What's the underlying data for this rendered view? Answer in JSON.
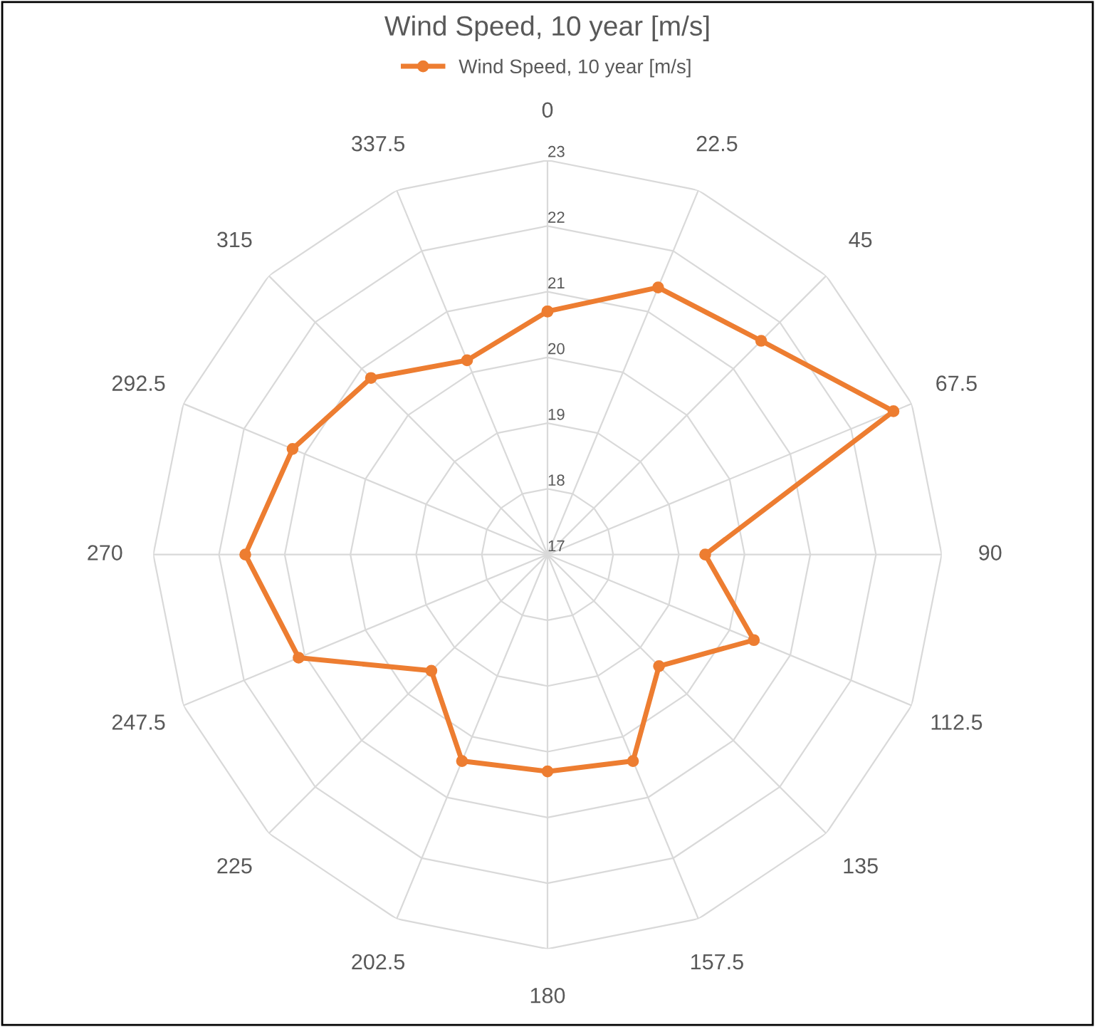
{
  "chart_data": {
    "type": "radar",
    "title": "Wind Speed, 10 year [m/s]",
    "categories": [
      "0",
      "22.5",
      "45",
      "67.5",
      "90",
      "112.5",
      "135",
      "157.5",
      "180",
      "202.5",
      "225",
      "247.5",
      "270",
      "292.5",
      "315",
      "337.5"
    ],
    "series": [
      {
        "name": "Wind Speed, 10 year [m/s]",
        "color": "#ed7d31",
        "values": [
          20.7,
          21.4,
          21.6,
          22.7,
          19.4,
          20.4,
          19.4,
          20.4,
          20.3,
          20.4,
          19.5,
          21.1,
          21.6,
          21.2,
          20.8,
          20.2
        ]
      }
    ],
    "ylim": [
      17,
      23
    ],
    "yticks": [
      17,
      18,
      19,
      20,
      21,
      22,
      23
    ],
    "grid": true,
    "legend": "top",
    "marker": "circle",
    "line_style": "solid"
  }
}
